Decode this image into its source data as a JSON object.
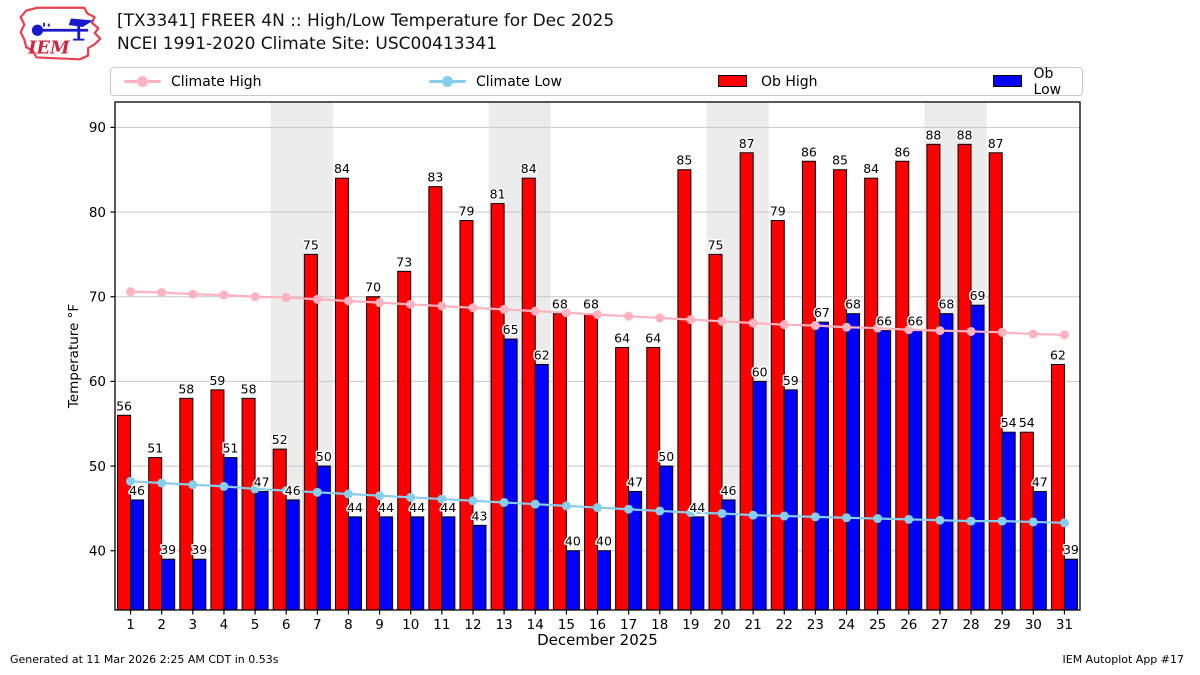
{
  "header": {
    "title_line1": "[TX3341] FREER 4N :: High/Low Temperature for Dec 2025",
    "title_line2": "NCEI 1991-2020 Climate Site: USC00413341",
    "logo_text": "IEM"
  },
  "legend": {
    "items": [
      {
        "label": "Climate High",
        "type": "line",
        "color": "#ffb3c1"
      },
      {
        "label": "Climate Low",
        "type": "line",
        "color": "#87ceeb"
      },
      {
        "label": "Ob High",
        "type": "patch",
        "color": "#ff0000"
      },
      {
        "label": "Ob Low",
        "type": "patch",
        "color": "#0000ff"
      }
    ]
  },
  "chart_data": {
    "type": "bar",
    "title": "[TX3341] FREER 4N :: High/Low Temperature for Dec 2025",
    "subtitle": "NCEI 1991-2020 Climate Site: USC00413341",
    "xlabel": "December 2025",
    "ylabel": "Temperature °F",
    "x": [
      1,
      2,
      3,
      4,
      5,
      6,
      7,
      8,
      9,
      10,
      11,
      12,
      13,
      14,
      15,
      16,
      17,
      18,
      19,
      20,
      21,
      22,
      23,
      24,
      25,
      26,
      27,
      28,
      29,
      30,
      31
    ],
    "ylim": [
      33,
      93
    ],
    "yticks": [
      40,
      50,
      60,
      70,
      80,
      90
    ],
    "grid": "horizontal",
    "band_color": "#ececec",
    "weekend_bands": [
      [
        6,
        7
      ],
      [
        13,
        14
      ],
      [
        20,
        21
      ],
      [
        27,
        28
      ]
    ],
    "series": [
      {
        "name": "Ob High",
        "type": "bar",
        "color": "#ff0000",
        "values": [
          56,
          51,
          58,
          59,
          58,
          52,
          75,
          84,
          70,
          73,
          83,
          79,
          81,
          84,
          68,
          68,
          64,
          64,
          85,
          75,
          87,
          79,
          86,
          85,
          84,
          86,
          88,
          88,
          87,
          54,
          62
        ]
      },
      {
        "name": "Ob Low",
        "type": "bar",
        "color": "#0000ff",
        "values": [
          46,
          39,
          39,
          51,
          47,
          46,
          50,
          44,
          44,
          44,
          44,
          43,
          65,
          62,
          40,
          40,
          47,
          50,
          44,
          46,
          60,
          59,
          67,
          68,
          66,
          66,
          68,
          69,
          54,
          47,
          39
        ]
      },
      {
        "name": "Climate High",
        "type": "line",
        "color": "#ffb3c1",
        "values": [
          70.6,
          70.5,
          70.3,
          70.2,
          70.0,
          69.9,
          69.7,
          69.5,
          69.3,
          69.1,
          68.9,
          68.7,
          68.5,
          68.3,
          68.1,
          67.9,
          67.7,
          67.5,
          67.3,
          67.1,
          66.9,
          66.7,
          66.6,
          66.4,
          66.3,
          66.1,
          66.0,
          65.9,
          65.8,
          65.6,
          65.5
        ]
      },
      {
        "name": "Climate Low",
        "type": "line",
        "color": "#87ceeb",
        "values": [
          48.2,
          48.0,
          47.8,
          47.6,
          47.3,
          47.1,
          46.9,
          46.7,
          46.5,
          46.3,
          46.1,
          45.9,
          45.7,
          45.5,
          45.3,
          45.1,
          44.9,
          44.7,
          44.5,
          44.4,
          44.2,
          44.1,
          44.0,
          43.9,
          43.8,
          43.7,
          43.6,
          43.5,
          43.5,
          43.4,
          43.3
        ]
      }
    ]
  },
  "footer": {
    "left": "Generated at 11 Mar 2026 2:25 AM CDT in 0.53s",
    "right": "IEM Autoplot App #17"
  }
}
